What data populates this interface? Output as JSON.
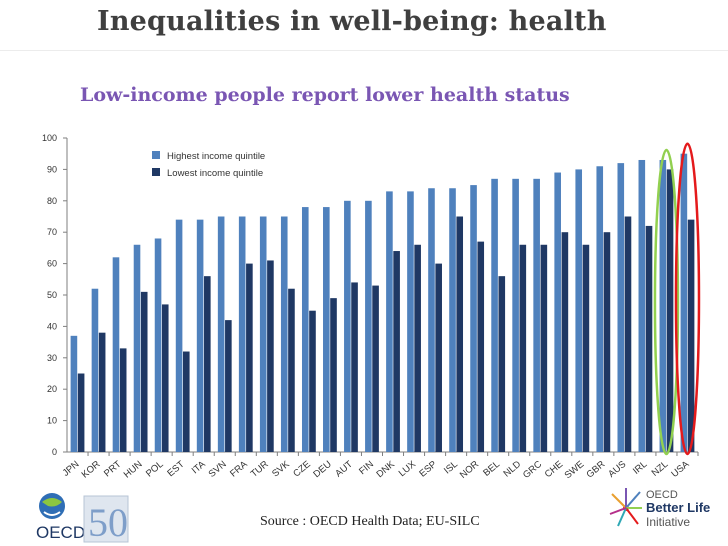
{
  "slide": {
    "title": "Inequalities in well-being: health",
    "subtitle": "Low-income people report lower health status",
    "source": "Source : OECD Health Data; EU-SILC"
  },
  "logos": {
    "oecd_text": "OECD",
    "anniversary_text": "50",
    "better_life_line1": "OECD",
    "better_life_line2": "Better Life",
    "better_life_line3": "Initiative"
  },
  "colors": {
    "highest": "#4f81bd",
    "lowest": "#1f3864",
    "title": "#3f3f3f",
    "subtitle": "#7a56b3",
    "highlight_green": "#92d050",
    "highlight_red": "#e41a1c"
  },
  "chart_data": {
    "type": "bar",
    "categories": [
      "JPN",
      "KOR",
      "PRT",
      "HUN",
      "POL",
      "EST",
      "ITA",
      "SVN",
      "FRA",
      "TUR",
      "SVK",
      "CZE",
      "DEU",
      "AUT",
      "FIN",
      "DNK",
      "LUX",
      "ESP",
      "ISL",
      "NOR",
      "BEL",
      "NLD",
      "GRC",
      "CHE",
      "SWE",
      "GBR",
      "AUS",
      "IRL",
      "NZL",
      "USA"
    ],
    "series": [
      {
        "name": "Highest income quintile",
        "values": [
          37,
          52,
          62,
          66,
          68,
          74,
          74,
          75,
          75,
          75,
          75,
          78,
          78,
          80,
          80,
          83,
          83,
          84,
          84,
          85,
          87,
          87,
          87,
          89,
          90,
          91,
          92,
          93,
          93,
          95
        ]
      },
      {
        "name": "Lowest income quintile",
        "values": [
          25,
          38,
          33,
          51,
          47,
          32,
          56,
          42,
          60,
          61,
          52,
          45,
          49,
          54,
          53,
          64,
          66,
          60,
          75,
          67,
          56,
          66,
          66,
          70,
          66,
          70,
          75,
          72,
          90,
          74
        ]
      }
    ],
    "ylim": [
      0,
      100
    ],
    "yticks": [
      0,
      10,
      20,
      30,
      40,
      50,
      60,
      70,
      80,
      90,
      100
    ],
    "legend_position": "top-left",
    "grid": false,
    "highlighted_categories": [
      "NZL",
      "USA"
    ]
  }
}
